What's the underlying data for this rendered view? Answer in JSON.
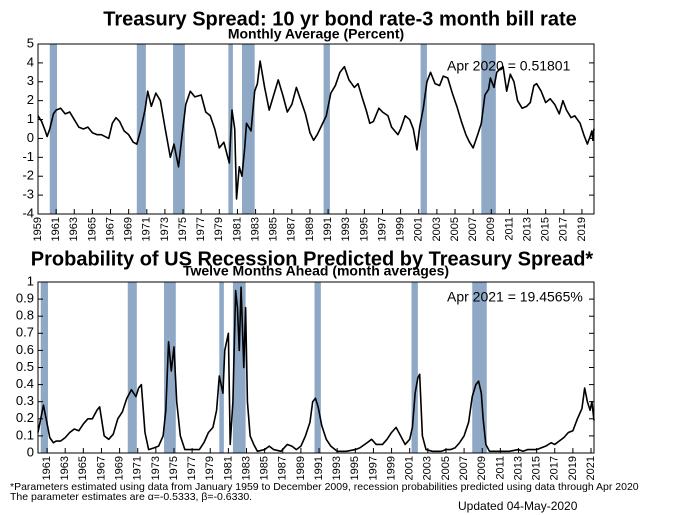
{
  "chart_data": [
    {
      "type": "line",
      "title": "Treasury Spread: 10 yr bond rate-3 month bill rate",
      "subtitle": "Monthly Average (Percent)",
      "annotation": "Apr 2020 = 0.51801",
      "color": "#000000",
      "shade_color": "#8ea8c6",
      "recessions": [
        [
          1960.3,
          1961.1
        ],
        [
          1969.9,
          1970.9
        ],
        [
          1973.9,
          1975.2
        ],
        [
          1980.0,
          1980.5
        ],
        [
          1981.5,
          1982.9
        ],
        [
          1990.5,
          1991.2
        ],
        [
          2001.2,
          2001.9
        ],
        [
          2007.9,
          2009.5
        ]
      ],
      "x": [
        1959,
        1959.4,
        1959.8,
        1960.0,
        1960.3,
        1960.7,
        1961.0,
        1961.5,
        1962,
        1962.5,
        1963,
        1963.5,
        1964,
        1964.5,
        1965,
        1965.5,
        1966,
        1966.8,
        1967.2,
        1967.6,
        1968,
        1968.5,
        1969,
        1969.5,
        1969.9,
        1970.3,
        1970.8,
        1971.1,
        1971.5,
        1972,
        1972.5,
        1973,
        1973.6,
        1974,
        1974.5,
        1974.9,
        1975.3,
        1975.8,
        1976.3,
        1977,
        1977.5,
        1978,
        1978.5,
        1979,
        1979.5,
        1980.1,
        1980.4,
        1980.7,
        1980.9,
        1981.2,
        1981.5,
        1981.8,
        1982,
        1982.5,
        1982.9,
        1983.2,
        1983.5,
        1984,
        1984.5,
        1985,
        1985.5,
        1986,
        1986.5,
        1987,
        1987.5,
        1988,
        1988.5,
        1989,
        1989.4,
        1989.8,
        1990.3,
        1990.8,
        1991.3,
        1991.8,
        1992.3,
        1992.8,
        1993.3,
        1993.9,
        1994.3,
        1994.8,
        1995.2,
        1995.6,
        1996,
        1996.6,
        1997,
        1997.6,
        1998,
        1998.7,
        1999,
        1999.5,
        2000,
        2000.4,
        2000.8,
        2001.1,
        2001.5,
        2001.9,
        2002.3,
        2002.8,
        2003.3,
        2003.7,
        2004.2,
        2004.7,
        2005.2,
        2005.7,
        2006.2,
        2006.6,
        2007,
        2007.5,
        2007.9,
        2008.3,
        2008.7,
        2008.9,
        2009.3,
        2009.6,
        2010,
        2010.3,
        2010.7,
        2011.1,
        2011.5,
        2011.9,
        2012.4,
        2012.9,
        2013.3,
        2013.7,
        2014,
        2014.5,
        2015,
        2015.5,
        2016,
        2016.5,
        2016.9,
        2017.3,
        2017.8,
        2018.2,
        2018.8,
        2019.2,
        2019.6,
        2019.9,
        2020.1,
        2020.2,
        2020.33
      ],
      "values": [
        1.2,
        0.9,
        0.4,
        0.1,
        0.5,
        1.3,
        1.5,
        1.6,
        1.3,
        1.4,
        1.0,
        0.6,
        0.5,
        0.6,
        0.3,
        0.2,
        0.2,
        0.0,
        0.8,
        1.1,
        0.9,
        0.4,
        0.2,
        -0.2,
        -0.3,
        0.4,
        1.5,
        2.5,
        1.7,
        2.4,
        2.0,
        0.6,
        -1.0,
        -0.3,
        -1.5,
        0.2,
        1.8,
        2.5,
        2.2,
        2.3,
        1.4,
        1.2,
        0.5,
        -0.5,
        -0.2,
        -1.3,
        1.5,
        0.5,
        -3.2,
        -1.5,
        -2.0,
        -0.5,
        0.8,
        0.4,
        2.5,
        2.9,
        4.1,
        2.7,
        1.5,
        2.3,
        3.1,
        2.3,
        1.4,
        1.8,
        2.7,
        2.0,
        1.3,
        0.3,
        -0.1,
        0.2,
        0.7,
        1.2,
        2.4,
        2.8,
        3.5,
        3.8,
        3.1,
        2.7,
        2.9,
        2.1,
        1.5,
        0.8,
        0.9,
        1.6,
        1.4,
        1.2,
        0.6,
        0.2,
        0.5,
        1.2,
        1.0,
        0.5,
        -0.6,
        0.6,
        1.6,
        3.0,
        3.5,
        2.9,
        2.8,
        3.3,
        3.2,
        2.4,
        1.7,
        0.9,
        0.2,
        -0.2,
        -0.5,
        0.2,
        0.8,
        2.3,
        2.6,
        3.2,
        2.7,
        3.5,
        3.7,
        3.8,
        2.5,
        3.4,
        3.0,
        2.0,
        1.6,
        1.7,
        1.9,
        2.8,
        2.9,
        2.5,
        1.9,
        2.1,
        1.8,
        1.3,
        2.0,
        1.5,
        1.1,
        1.2,
        0.8,
        0.2,
        -0.3,
        0.1,
        0.4,
        -0.1,
        0.52
      ],
      "xlim": [
        1959,
        2020.33
      ],
      "xticks": [
        1959,
        1961,
        1963,
        1965,
        1967,
        1969,
        1971,
        1973,
        1975,
        1977,
        1979,
        1981,
        1983,
        1985,
        1987,
        1989,
        1991,
        1993,
        1995,
        1997,
        1999,
        2001,
        2003,
        2005,
        2007,
        2009,
        2011,
        2013,
        2015,
        2017,
        2019
      ],
      "ylim": [
        -4,
        5
      ],
      "yticks": [
        -4,
        -3,
        -2,
        -1,
        0,
        1,
        2,
        3,
        4,
        5
      ]
    },
    {
      "type": "line",
      "title": "Probability of US Recession Predicted by Treasury Spread*",
      "subtitle": "Twelve Months Ahead (month averages)",
      "annotation": "Apr 2021 = 19.4565%",
      "color": "#000000",
      "shade_color": "#8ea8c6",
      "recessions": [
        [
          1960.3,
          1961.1
        ],
        [
          1969.9,
          1970.9
        ],
        [
          1973.9,
          1975.2
        ],
        [
          1980.0,
          1980.5
        ],
        [
          1981.5,
          1982.9
        ],
        [
          1990.5,
          1991.2
        ],
        [
          2001.2,
          2001.9
        ],
        [
          2007.9,
          2009.5
        ]
      ],
      "x": [
        1960,
        1960.3,
        1960.6,
        1960.9,
        1961.3,
        1961.7,
        1962,
        1962.5,
        1963,
        1963.5,
        1964,
        1964.5,
        1965,
        1965.5,
        1966,
        1966.5,
        1966.8,
        1967.3,
        1967.8,
        1968.3,
        1968.8,
        1969.3,
        1969.8,
        1970.3,
        1970.8,
        1971.1,
        1971.4,
        1971.8,
        1972.2,
        1972.8,
        1973.3,
        1973.8,
        1974.1,
        1974.4,
        1974.7,
        1975,
        1975.3,
        1975.7,
        1976.2,
        1977,
        1977.8,
        1978.3,
        1978.8,
        1979.3,
        1979.7,
        1980,
        1980.4,
        1980.6,
        1981.0,
        1981.2,
        1981.5,
        1981.8,
        1982.0,
        1982.2,
        1982.4,
        1982.7,
        1982.9,
        1983.1,
        1983.4,
        1983.8,
        1984.2,
        1985,
        1985.5,
        1986,
        1986.8,
        1987.5,
        1988,
        1988.5,
        1989,
        1989.5,
        1990,
        1990.3,
        1990.6,
        1990.9,
        1991.3,
        1991.8,
        1992.3,
        1993,
        1994,
        1995,
        1995.5,
        1996.3,
        1996.8,
        1997.3,
        1998,
        1998.5,
        1999,
        1999.5,
        2000,
        2000.5,
        2001,
        2001.3,
        2001.6,
        2001.9,
        2002.1,
        2002.4,
        2002.8,
        2003.5,
        2004.5,
        2005,
        2005.5,
        2006,
        2006.5,
        2007,
        2007.5,
        2007.9,
        2008.3,
        2008.6,
        2008.9,
        2009.1,
        2009.4,
        2009.8,
        2010.5,
        2011,
        2012,
        2013,
        2013.5,
        2014,
        2015,
        2015.5,
        2016,
        2016.6,
        2017,
        2017.5,
        2018,
        2018.5,
        2019,
        2019.5,
        2020,
        2020.3,
        2020.6,
        2020.9,
        2021.1,
        2021.33
      ],
      "values": [
        0.12,
        0.2,
        0.28,
        0.2,
        0.09,
        0.06,
        0.07,
        0.07,
        0.09,
        0.12,
        0.14,
        0.13,
        0.17,
        0.2,
        0.2,
        0.25,
        0.27,
        0.1,
        0.08,
        0.11,
        0.2,
        0.24,
        0.32,
        0.37,
        0.33,
        0.38,
        0.4,
        0.12,
        0.02,
        0.03,
        0.04,
        0.1,
        0.25,
        0.65,
        0.48,
        0.62,
        0.3,
        0.1,
        0.02,
        0.02,
        0.02,
        0.06,
        0.12,
        0.15,
        0.25,
        0.45,
        0.35,
        0.6,
        0.7,
        0.05,
        0.3,
        0.95,
        0.85,
        0.6,
        0.97,
        0.5,
        0.85,
        0.3,
        0.1,
        0.05,
        0.01,
        0.02,
        0.04,
        0.02,
        0.01,
        0.05,
        0.04,
        0.02,
        0.04,
        0.1,
        0.18,
        0.3,
        0.32,
        0.27,
        0.16,
        0.08,
        0.04,
        0.01,
        0.01,
        0.02,
        0.03,
        0.06,
        0.08,
        0.05,
        0.05,
        0.08,
        0.12,
        0.15,
        0.1,
        0.05,
        0.08,
        0.15,
        0.35,
        0.44,
        0.46,
        0.1,
        0.02,
        0.01,
        0.01,
        0.02,
        0.02,
        0.03,
        0.06,
        0.1,
        0.18,
        0.33,
        0.4,
        0.42,
        0.35,
        0.2,
        0.05,
        0.01,
        0.01,
        0.01,
        0.01,
        0.02,
        0.01,
        0.02,
        0.02,
        0.03,
        0.04,
        0.06,
        0.05,
        0.07,
        0.09,
        0.12,
        0.13,
        0.2,
        0.26,
        0.38,
        0.3,
        0.25,
        0.3,
        0.19
      ],
      "xlim": [
        1960,
        2021.33
      ],
      "xticks": [
        1961,
        1963,
        1965,
        1967,
        1969,
        1971,
        1973,
        1975,
        1977,
        1979,
        1981,
        1983,
        1985,
        1987,
        1989,
        1991,
        1993,
        1995,
        1997,
        1999,
        2001,
        2003,
        2005,
        2007,
        2009,
        2011,
        2013,
        2015,
        2017,
        2019,
        2021
      ],
      "ylim": [
        0,
        1
      ],
      "yticks": [
        0,
        0.1,
        0.2,
        0.3,
        0.4,
        0.5,
        0.6,
        0.7,
        0.8,
        0.9,
        1
      ]
    }
  ],
  "footnotes": [
    "*Parameters estimated using data from January 1959 to December 2009, recession probabilities predicted using data through Apr 2020",
    "The parameter estimates are α=-0.5333, β=-0.6330."
  ],
  "updated": "Updated 04-May-2020"
}
